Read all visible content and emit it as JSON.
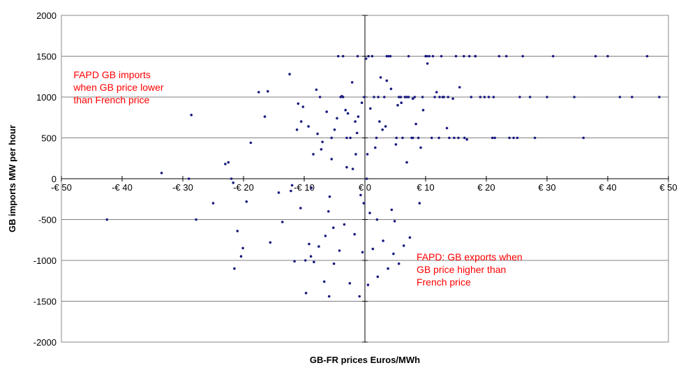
{
  "chart_data": {
    "type": "scatter",
    "xlabel": "GB-FR prices Euros/MWh",
    "ylabel": "GB imports MW per hour",
    "xlim": [
      -50,
      50
    ],
    "ylim": [
      -2000,
      2000
    ],
    "x_ticks": [
      -50,
      -40,
      -30,
      -20,
      -10,
      0,
      10,
      20,
      30,
      40,
      50
    ],
    "x_tick_labels": [
      "-€ 50",
      "-€ 40",
      "-€ 30",
      "-€ 20",
      "-€ 10",
      "€ 0",
      "€ 10",
      "€ 20",
      "€ 30",
      "€ 40",
      "€ 50"
    ],
    "y_ticks": [
      -2000,
      -1500,
      -1000,
      -500,
      0,
      500,
      1000,
      1500,
      2000
    ],
    "y_tick_labels": [
      "-2000",
      "-1500",
      "-1000",
      "-500",
      "0",
      "500",
      "1000",
      "1500",
      "2000"
    ],
    "grid": "horizontal",
    "legend": "none",
    "marker_color": "#1a1a80",
    "annotation_color": "#ff0000",
    "annotations": [
      {
        "lines": [
          "FAPD GB imports",
          "when GB price lower",
          "than French price"
        ],
        "x": -48,
        "y": 1230
      },
      {
        "lines": [
          "FAPD: GB exports when",
          "GB price higher than",
          "French price"
        ],
        "x": 8.5,
        "y": -1000
      }
    ],
    "series": [
      {
        "x": [
          -42.5,
          -33.5,
          -29,
          -28.6,
          -27.8,
          -25,
          -23,
          -22.5,
          -22,
          -21.7,
          -21.5,
          -21.0,
          -20.4,
          -20.1,
          -19.5,
          -18.8,
          -17.5,
          -16.5,
          -16,
          -15.6,
          -14.2,
          -13.6,
          -12.4,
          -12,
          -11.6,
          -11,
          -10.6,
          -10.2,
          -9.7,
          -9.3,
          -8.8,
          -8.4,
          -8.0,
          -7.6,
          -7.2,
          -6.7,
          -6.3,
          -5.9,
          -5.5,
          -5.1,
          -4.6,
          -4.2,
          -3.8,
          -3.4,
          -3.0,
          -2.5,
          -2.1,
          -1.7,
          -1.3,
          -0.9,
          -0.5,
          -0.2,
          0.2,
          0.5,
          0.9,
          1.3,
          1.7,
          2.1,
          2.6,
          3.0,
          3.4,
          3.8,
          4.3,
          4.7,
          5.1,
          5.6,
          6.0,
          6.4,
          6.9,
          7.4,
          7.9,
          8.4,
          9.0,
          9.6,
          10.3,
          11.0,
          11.8,
          12.6,
          13.5,
          14.5,
          15.6,
          16.8,
          18.2,
          19.7,
          21.4,
          23.3,
          25.5,
          28.0,
          31.0,
          34.5,
          38.0,
          42.0,
          46.5,
          -12.2,
          -10.5,
          -8.9,
          -7.0,
          -5.2,
          -3.2,
          -1.1,
          0.8,
          2.9,
          4.9,
          6.9,
          9.2,
          11.5,
          13.9,
          16.3,
          -9.8,
          -7.8,
          -5.8,
          -3.6,
          -1.5,
          0.6,
          2.4,
          4.4,
          6.6,
          8.8,
          11.2,
          13.7,
          16.4,
          19.0,
          22.1,
          25.1,
          -8.5,
          -6.5,
          -4.4,
          -2.4,
          -0.4,
          1.5,
          3.6,
          5.6,
          7.7,
          10.0,
          12.3,
          14.7,
          17.2,
          20.4,
          23.8,
          27.2,
          -6.0,
          -4.0,
          -2.0,
          -0.1,
          1.9,
          3.9,
          5.9,
          7.9,
          10.2,
          12.8,
          15.4,
          18.2,
          21.2,
          24.5,
          -5.5,
          -3.6,
          -1.6,
          0.3,
          2.2,
          4.2,
          6.2,
          8.2,
          10.6,
          13.0,
          -11.2,
          -9.2,
          -7.4,
          -5.0,
          -2.8,
          -0.7,
          1.2,
          3.2,
          5.2,
          7.2,
          -3.0,
          -1.2,
          0.4,
          2.0,
          3.6,
          5.4,
          7.2,
          9.5,
          12.2,
          15.0,
          17.5,
          21.0,
          26.0,
          30.0,
          36.0,
          40.0,
          44.0,
          48.5
        ],
        "y": [
          -500,
          70,
          0,
          780,
          -500,
          -300,
          180,
          200,
          0,
          -50,
          -1100,
          -640,
          -950,
          -850,
          -280,
          440,
          1060,
          760,
          1070,
          -780,
          -170,
          -530,
          1280,
          -80,
          -1010,
          920,
          -360,
          880,
          -1400,
          640,
          -110,
          -1020,
          1090,
          -830,
          360,
          -1260,
          820,
          -1440,
          240,
          -1040,
          740,
          -880,
          1010,
          -560,
          140,
          -1280,
          1180,
          -680,
          560,
          -1440,
          930,
          -300,
          1470,
          -1300,
          860,
          -860,
          380,
          -1200,
          1240,
          -760,
          640,
          -1100,
          1100,
          -920,
          420,
          -1040,
          930,
          -820,
          200,
          -720,
          980,
          670,
          -300,
          840,
          1410,
          500,
          1060,
          1500,
          620,
          980,
          1120,
          480,
          1500,
          1000,
          500,
          1500,
          1000,
          500,
          1500,
          1000,
          1500,
          1000,
          1500,
          -150,
          700,
          -950,
          450,
          -600,
          840,
          760,
          -420,
          600,
          -520,
          1000,
          380,
          1000,
          500,
          1500,
          -1000,
          550,
          -220,
          1000,
          300,
          1500,
          700,
          -380,
          1000,
          500,
          1500,
          1000,
          500,
          1000,
          1500,
          500,
          300,
          -700,
          1500,
          500,
          -900,
          1000,
          1500,
          1000,
          500,
          1500,
          1000,
          500,
          1500,
          1000,
          500,
          1000,
          -400,
          1000,
          120,
          1000,
          500,
          1500,
          1000,
          500,
          1500,
          1000,
          500,
          1500,
          1000,
          500,
          500,
          1500,
          700,
          0,
          1000,
          1500,
          500,
          1000,
          1500,
          1000,
          600,
          -800,
          1000,
          600,
          800,
          -200,
          1500,
          1000,
          500,
          1000,
          500,
          1500,
          300,
          -500,
          1200,
          900,
          1500,
          1000,
          500,
          1500,
          1000,
          500,
          1500,
          1000,
          500,
          1500,
          1000,
          1000
        ]
      }
    ]
  }
}
